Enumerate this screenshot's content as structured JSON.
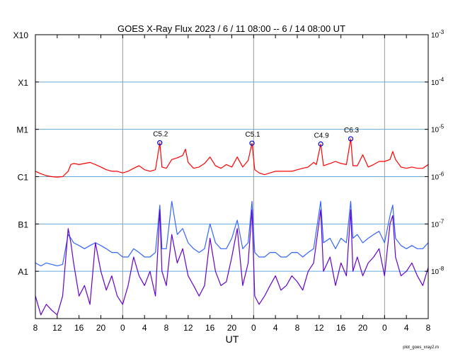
{
  "chart_data": {
    "type": "line",
    "title": "GOES X-Ray Flux   2023  /  6  /  11    08:00 --  6  /  14   08:00   UT",
    "xlabel": "UT",
    "x_tick_labels": [
      "8",
      "12",
      "16",
      "20",
      "0",
      "4",
      "8",
      "12",
      "16",
      "20",
      "0",
      "4",
      "8",
      "12",
      "16",
      "20",
      "0",
      "4",
      "8"
    ],
    "x_range_hours": [
      0,
      72
    ],
    "y_scale": "log",
    "y_range_W_m2": [
      1e-09,
      0.001
    ],
    "y_left_labels": [
      {
        "label": "X10",
        "value": 0.001
      },
      {
        "label": "X1",
        "value": 0.0001
      },
      {
        "label": "M1",
        "value": 1e-05
      },
      {
        "label": "C1",
        "value": 1e-06
      },
      {
        "label": "B1",
        "value": 1e-07
      },
      {
        "label": "A1",
        "value": 1e-08
      }
    ],
    "y_right_labels": [
      {
        "label": "10^-3",
        "base": "10",
        "exp": "-3",
        "value": 0.001
      },
      {
        "label": "10^-4",
        "base": "10",
        "exp": "-4",
        "value": 0.0001
      },
      {
        "label": "10^-5",
        "base": "10",
        "exp": "-5",
        "value": 1e-05
      },
      {
        "label": "10^-6",
        "base": "10",
        "exp": "-6",
        "value": 1e-06
      },
      {
        "label": "10^-7",
        "base": "10",
        "exp": "-7",
        "value": 1e-07
      },
      {
        "label": "10^-8",
        "base": "10",
        "exp": "-8",
        "value": 1e-08
      }
    ],
    "horizontal_gridlines": [
      0.0001,
      1e-05,
      1e-06,
      1e-07,
      1e-08
    ],
    "day_boundaries_hours": [
      16,
      40,
      64
    ],
    "flare_annotations": [
      {
        "label": "C5.2",
        "x": 22.8,
        "y": 5.2e-06
      },
      {
        "label": "C5.1",
        "x": 39.7,
        "y": 5.1e-06
      },
      {
        "label": "C4.9",
        "x": 52.3,
        "y": 4.9e-06
      },
      {
        "label": "C6.3",
        "x": 57.8,
        "y": 6.3e-06
      }
    ],
    "series": [
      {
        "color": "#ff0000",
        "points": [
          [
            0,
            1.3e-06
          ],
          [
            1,
            1.15e-06
          ],
          [
            2,
            1.05e-06
          ],
          [
            3,
            1e-06
          ],
          [
            4,
            9.8e-07
          ],
          [
            5,
            1e-06
          ],
          [
            6,
            1.3e-06
          ],
          [
            6.5,
            1.8e-06
          ],
          [
            7,
            1.9e-06
          ],
          [
            8,
            1.8e-06
          ],
          [
            9,
            1.9e-06
          ],
          [
            10,
            2e-06
          ],
          [
            11,
            1.8e-06
          ],
          [
            12,
            1.6e-06
          ],
          [
            13,
            1.4e-06
          ],
          [
            14,
            1.3e-06
          ],
          [
            15,
            1.3e-06
          ],
          [
            16,
            1.2e-06
          ],
          [
            17,
            1.3e-06
          ],
          [
            18,
            1.5e-06
          ],
          [
            19,
            1.7e-06
          ],
          [
            20,
            1.4e-06
          ],
          [
            21,
            1.3e-06
          ],
          [
            22,
            1.4e-06
          ],
          [
            22.8,
            5.2e-06
          ],
          [
            23.2,
            1.6e-06
          ],
          [
            24,
            1.5e-06
          ],
          [
            25,
            2.3e-06
          ],
          [
            26,
            2.5e-06
          ],
          [
            27,
            2.8e-06
          ],
          [
            27.5,
            3.8e-06
          ],
          [
            28,
            2e-06
          ],
          [
            29,
            1.5e-06
          ],
          [
            30,
            1.6e-06
          ],
          [
            31,
            1.9e-06
          ],
          [
            32,
            2.6e-06
          ],
          [
            33,
            1.7e-06
          ],
          [
            34,
            1.5e-06
          ],
          [
            35,
            1.8e-06
          ],
          [
            36,
            1.6e-06
          ],
          [
            37,
            2.6e-06
          ],
          [
            38,
            1.6e-06
          ],
          [
            39,
            2.2e-06
          ],
          [
            39.7,
            5.1e-06
          ],
          [
            40.2,
            1.4e-06
          ],
          [
            41,
            1.2e-06
          ],
          [
            42,
            1.1e-06
          ],
          [
            43,
            1.2e-06
          ],
          [
            44,
            1.3e-06
          ],
          [
            45,
            1.3e-06
          ],
          [
            46,
            1.3e-06
          ],
          [
            47,
            1.3e-06
          ],
          [
            48,
            1.4e-06
          ],
          [
            49,
            1.5e-06
          ],
          [
            50,
            1.6e-06
          ],
          [
            51,
            2e-06
          ],
          [
            51.5,
            1.8e-06
          ],
          [
            52.3,
            4.9e-06
          ],
          [
            52.8,
            1.7e-06
          ],
          [
            54,
            1.9e-06
          ],
          [
            55,
            2.1e-06
          ],
          [
            56,
            1.9e-06
          ],
          [
            57,
            1.8e-06
          ],
          [
            57.8,
            6.3e-06
          ],
          [
            58.2,
            1.7e-06
          ],
          [
            59,
            1.7e-06
          ],
          [
            60,
            2.9e-06
          ],
          [
            61,
            1.6e-06
          ],
          [
            62,
            1.8e-06
          ],
          [
            63,
            2.1e-06
          ],
          [
            64,
            2.1e-06
          ],
          [
            65,
            2.3e-06
          ],
          [
            65.5,
            3.4e-06
          ],
          [
            66,
            2.3e-06
          ],
          [
            67,
            1.6e-06
          ],
          [
            68,
            1.5e-06
          ],
          [
            69,
            1.6e-06
          ],
          [
            70,
            1.5e-06
          ],
          [
            71,
            1.5e-06
          ],
          [
            72,
            1.8e-06
          ]
        ]
      },
      {
        "color": "#3366ff",
        "points": [
          [
            0,
            1.5e-08
          ],
          [
            1,
            1.3e-08
          ],
          [
            2,
            1.5e-08
          ],
          [
            3,
            1.4e-08
          ],
          [
            4,
            1.3e-08
          ],
          [
            5,
            1.4e-08
          ],
          [
            6,
            6e-08
          ],
          [
            6.5,
            5e-08
          ],
          [
            7,
            4e-08
          ],
          [
            8,
            3.5e-08
          ],
          [
            9,
            3e-08
          ],
          [
            10,
            3.5e-08
          ],
          [
            11,
            4e-08
          ],
          [
            12,
            3.5e-08
          ],
          [
            13,
            3e-08
          ],
          [
            14,
            2.5e-08
          ],
          [
            15,
            2.5e-08
          ],
          [
            16,
            2e-08
          ],
          [
            17,
            2e-08
          ],
          [
            18,
            3e-08
          ],
          [
            19,
            2.5e-08
          ],
          [
            20,
            2e-08
          ],
          [
            21,
            2e-08
          ],
          [
            22,
            2.5e-08
          ],
          [
            22.8,
            2.5e-07
          ],
          [
            23.2,
            3e-08
          ],
          [
            24,
            3e-08
          ],
          [
            25,
            3e-07
          ],
          [
            26,
            6e-08
          ],
          [
            27,
            8e-08
          ],
          [
            28,
            4e-08
          ],
          [
            29,
            3e-08
          ],
          [
            30,
            2.5e-08
          ],
          [
            31,
            3e-08
          ],
          [
            32,
            1e-07
          ],
          [
            33,
            4e-08
          ],
          [
            34,
            3e-08
          ],
          [
            35,
            3e-08
          ],
          [
            36,
            5e-08
          ],
          [
            37,
            1.2e-07
          ],
          [
            38,
            3e-08
          ],
          [
            39,
            4e-08
          ],
          [
            39.7,
            3e-07
          ],
          [
            40.2,
            2.5e-08
          ],
          [
            41,
            2e-08
          ],
          [
            42,
            2e-08
          ],
          [
            43,
            2.5e-08
          ],
          [
            44,
            2.5e-08
          ],
          [
            45,
            2e-08
          ],
          [
            46,
            2e-08
          ],
          [
            47,
            2.5e-08
          ],
          [
            48,
            2.5e-08
          ],
          [
            49,
            2e-08
          ],
          [
            50,
            2.5e-08
          ],
          [
            51,
            3e-08
          ],
          [
            52.3,
            3e-07
          ],
          [
            52.8,
            4e-08
          ],
          [
            54,
            5e-08
          ],
          [
            55,
            3e-08
          ],
          [
            56,
            5e-08
          ],
          [
            57,
            4e-08
          ],
          [
            57.8,
            3e-07
          ],
          [
            58.2,
            5e-08
          ],
          [
            59,
            6e-08
          ],
          [
            60,
            4e-08
          ],
          [
            61,
            5e-08
          ],
          [
            62,
            6e-08
          ],
          [
            63,
            7e-08
          ],
          [
            64,
            4e-08
          ],
          [
            65,
            1.5e-07
          ],
          [
            65.5,
            2.5e-07
          ],
          [
            66,
            5e-08
          ],
          [
            67,
            3.5e-08
          ],
          [
            68,
            3e-08
          ],
          [
            69,
            3.5e-08
          ],
          [
            70,
            3e-08
          ],
          [
            71,
            3e-08
          ],
          [
            72,
            4e-08
          ]
        ]
      },
      {
        "color": "#6600cc",
        "points": [
          [
            0,
            3e-09
          ],
          [
            1,
            1.2e-09
          ],
          [
            2,
            2e-09
          ],
          [
            3,
            1.5e-09
          ],
          [
            4,
            1.2e-09
          ],
          [
            5,
            3e-09
          ],
          [
            6,
            8e-08
          ],
          [
            6.5,
            4e-08
          ],
          [
            7,
            1.5e-08
          ],
          [
            8,
            3e-09
          ],
          [
            9,
            5e-09
          ],
          [
            10,
            2e-09
          ],
          [
            11,
            4e-08
          ],
          [
            12,
            1e-08
          ],
          [
            13,
            4e-09
          ],
          [
            14,
            8e-09
          ],
          [
            15,
            3e-09
          ],
          [
            16,
            2e-09
          ],
          [
            17,
            5e-09
          ],
          [
            18,
            2e-08
          ],
          [
            19,
            8e-09
          ],
          [
            20,
            5e-09
          ],
          [
            21,
            1e-08
          ],
          [
            22,
            3e-09
          ],
          [
            22.8,
            2e-07
          ],
          [
            23.2,
            1e-08
          ],
          [
            24,
            5e-09
          ],
          [
            25,
            6e-08
          ],
          [
            26,
            1.5e-08
          ],
          [
            27,
            3e-08
          ],
          [
            28,
            8e-09
          ],
          [
            29,
            5e-09
          ],
          [
            30,
            3e-09
          ],
          [
            31,
            5e-09
          ],
          [
            32,
            5e-08
          ],
          [
            33,
            1e-08
          ],
          [
            34,
            5e-09
          ],
          [
            35,
            6e-09
          ],
          [
            36,
            2e-08
          ],
          [
            37,
            8e-08
          ],
          [
            38,
            5e-09
          ],
          [
            39,
            1.5e-08
          ],
          [
            39.7,
            2e-07
          ],
          [
            40.2,
            3e-09
          ],
          [
            41,
            2e-09
          ],
          [
            42,
            3e-09
          ],
          [
            43,
            5e-09
          ],
          [
            44,
            8e-09
          ],
          [
            45,
            4e-09
          ],
          [
            46,
            5e-09
          ],
          [
            47,
            8e-09
          ],
          [
            48,
            6e-09
          ],
          [
            49,
            4e-09
          ],
          [
            50,
            1e-08
          ],
          [
            51,
            1.5e-08
          ],
          [
            52.3,
            2e-07
          ],
          [
            52.8,
            1e-08
          ],
          [
            54,
            2e-08
          ],
          [
            55,
            5e-09
          ],
          [
            56,
            1.5e-08
          ],
          [
            57,
            8e-09
          ],
          [
            57.8,
            2e-07
          ],
          [
            58.2,
            1e-08
          ],
          [
            59,
            2e-08
          ],
          [
            60,
            8e-09
          ],
          [
            61,
            1.5e-08
          ],
          [
            62,
            2e-08
          ],
          [
            63,
            3e-08
          ],
          [
            64,
            8e-09
          ],
          [
            65,
            1e-07
          ],
          [
            65.5,
            1.5e-07
          ],
          [
            66,
            2e-08
          ],
          [
            67,
            8e-09
          ],
          [
            68,
            1e-08
          ],
          [
            69,
            1.5e-08
          ],
          [
            70,
            8e-09
          ],
          [
            71,
            5e-09
          ],
          [
            72,
            1.2e-08
          ]
        ]
      }
    ],
    "footer_note": "plot_goes_xray2.m"
  }
}
